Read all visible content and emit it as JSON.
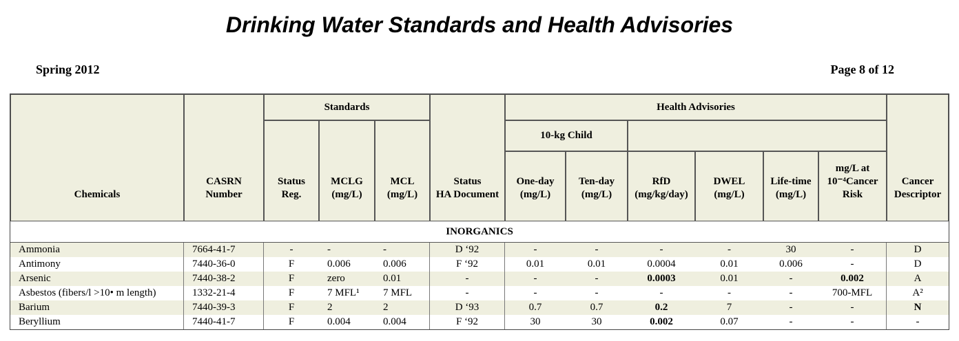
{
  "header": {
    "title": "Drinking Water Standards and Health Advisories",
    "edition": "Spring 2012",
    "page": "Page 8 of 12"
  },
  "table": {
    "groups": {
      "standards": "Standards",
      "health_advisories": "Health Advisories",
      "child": "10-kg Child"
    },
    "columns": [
      "Chemicals",
      "CASRN\nNumber",
      "Status\nReg.",
      "MCLG\n(mg/L)",
      "MCL\n(mg/L)",
      "Status\nHA Document",
      "One-day\n(mg/L)",
      "Ten-day\n(mg/L)",
      "RfD\n(mg/kg/day)",
      "DWEL\n(mg/L)",
      "Life-time\n(mg/L)",
      "mg/L at\n10⁻⁴Cancer\nRisk",
      "Cancer\nDescriptor"
    ],
    "section": "INORGANICS",
    "rows": [
      [
        "Ammonia",
        "7664-41-7",
        "-",
        "-",
        "-",
        "D ‘92",
        "-",
        "-",
        "-",
        "-",
        "30",
        "-",
        "D"
      ],
      [
        "Antimony",
        "7440-36-0",
        "F",
        "0.006",
        "0.006",
        "F ‘92",
        "0.01",
        "0.01",
        "0.0004",
        "0.01",
        "0.006",
        "-",
        "D"
      ],
      [
        "Arsenic",
        "7440-38-2",
        "F",
        "zero",
        "0.01",
        "-",
        "-",
        "-",
        {
          "text": "0.0003",
          "bold": true
        },
        "0.01",
        "-",
        {
          "text": "0.002",
          "bold": true
        },
        "A"
      ],
      [
        "Asbestos (fibers/l >10• m length)",
        "1332-21-4",
        "F",
        "7 MFL¹",
        "7 MFL",
        "-",
        "-",
        "-",
        "-",
        "-",
        "-",
        "700-MFL",
        "A²"
      ],
      [
        "Barium",
        "7440-39-3",
        "F",
        "2",
        "2",
        "D ‘93",
        "0.7",
        "0.7",
        {
          "text": "0.2",
          "bold": true
        },
        "7",
        "-",
        "-",
        {
          "text": "N",
          "bold": true
        }
      ],
      [
        "Beryllium",
        "7440-41-7",
        "F",
        "0.004",
        "0.004",
        "F ‘92",
        "30",
        "30",
        {
          "text": "0.002",
          "bold": true
        },
        "0.07",
        "-",
        "-",
        "-"
      ]
    ]
  }
}
